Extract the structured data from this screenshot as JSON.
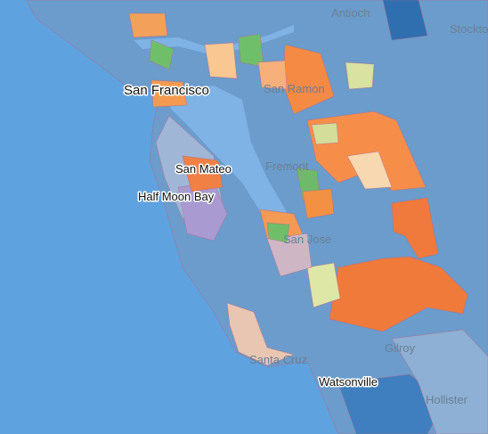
{
  "places": [
    {
      "label": "Antioch"
    },
    {
      "label": "Stockton"
    },
    {
      "label": "San Francisco"
    },
    {
      "label": "San Ramon"
    },
    {
      "label": "San Mateo"
    },
    {
      "label": "Fremont"
    },
    {
      "label": "Half Moon Bay"
    },
    {
      "label": "San Jose"
    },
    {
      "label": "Gilroy"
    },
    {
      "label": "Santa Cruz"
    },
    {
      "label": "Watsonville"
    },
    {
      "label": "Hollister"
    }
  ]
}
